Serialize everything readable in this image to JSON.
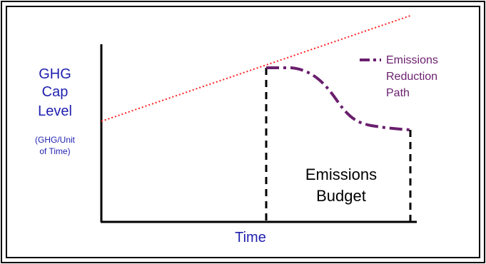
{
  "y_label": {
    "line1": "GHG",
    "line2": "Cap",
    "line3": "Level",
    "unit_line1": "(GHG/Unit",
    "unit_line2": "of Time)"
  },
  "x_label": "Time",
  "legend": {
    "line1": "Emissions",
    "line2": "Reduction",
    "line3": "Path"
  },
  "budget_label": {
    "line1": "Emissions",
    "line2": "Budget"
  },
  "colors": {
    "frame": "#000000",
    "axis": "#000000",
    "cap_line": "#ff2020",
    "reduction_path": "#6a1f6e",
    "label_blue": "#1f1fb0",
    "budget_text": "#000000"
  }
}
